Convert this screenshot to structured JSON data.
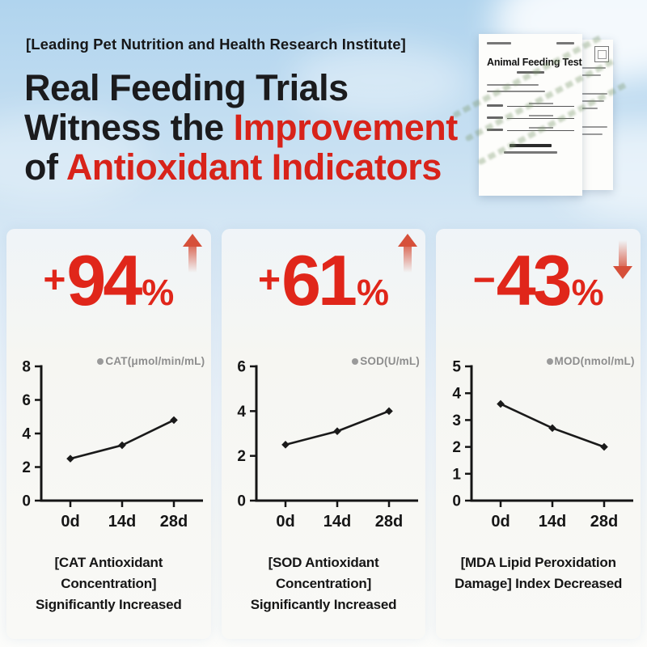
{
  "header": {
    "kicker": "[Leading Pet Nutrition and Health Research Institute]",
    "title_line1": "Real Feeding Trials",
    "title_line2_black": "Witness the ",
    "title_line2_red": "Improvement",
    "title_line3_black": "of ",
    "title_line3_red": "Antioxidant Indicators"
  },
  "document": {
    "title": "Animal Feeding Test"
  },
  "colors": {
    "accent_red": "#d8231a",
    "stat_red": "#e0261a",
    "arrow_red": "#d6503a",
    "title_black": "#1b1b1d",
    "sky_blue": "#b0d4ee",
    "legend_gray": "#8d8d8d",
    "line_black": "#1a1a1a"
  },
  "panels": [
    {
      "stat_prefix": "+",
      "stat_value": "94",
      "stat_unit": "%",
      "trend": "up",
      "caption_line1": "[CAT Antioxidant Concentration]",
      "caption_line2": "Significantly Increased"
    },
    {
      "stat_prefix": "+",
      "stat_value": "61",
      "stat_unit": "%",
      "trend": "up",
      "caption_line1": "[SOD Antioxidant Concentration]",
      "caption_line2": "Significantly Increased"
    },
    {
      "stat_prefix": "−",
      "stat_value": "43",
      "stat_unit": "%",
      "trend": "down",
      "caption_line1": "[MDA Lipid Peroxidation",
      "caption_line2": "Damage] Index Decreased"
    }
  ],
  "chart_data": [
    {
      "type": "line",
      "title": "CAT antioxidant concentration over feeding trial",
      "legend": "CAT(μmol/min/mL)",
      "categories": [
        "0d",
        "14d",
        "28d"
      ],
      "values": [
        2.5,
        3.3,
        4.8
      ],
      "xlabel": "",
      "ylabel": "",
      "ylim": [
        0,
        8
      ],
      "yticks": [
        0,
        2,
        4,
        6,
        8
      ],
      "grid": false,
      "legend_position": "top-right",
      "marker": "diamond"
    },
    {
      "type": "line",
      "title": "SOD antioxidant concentration over feeding trial",
      "legend": "SOD(U/mL)",
      "categories": [
        "0d",
        "14d",
        "28d"
      ],
      "values": [
        2.5,
        3.1,
        4.0
      ],
      "xlabel": "",
      "ylabel": "",
      "ylim": [
        0,
        6
      ],
      "yticks": [
        0,
        2,
        4,
        6
      ],
      "grid": false,
      "legend_position": "top-right",
      "marker": "diamond"
    },
    {
      "type": "line",
      "title": "MDA lipid peroxidation index over feeding trial",
      "legend": "MOD(nmol/mL)",
      "categories": [
        "0d",
        "14d",
        "28d"
      ],
      "values": [
        3.6,
        2.7,
        2.0
      ],
      "xlabel": "",
      "ylabel": "",
      "ylim": [
        0,
        5
      ],
      "yticks": [
        0,
        1,
        2,
        3,
        4,
        5
      ],
      "grid": false,
      "legend_position": "top-right",
      "marker": "diamond"
    }
  ]
}
